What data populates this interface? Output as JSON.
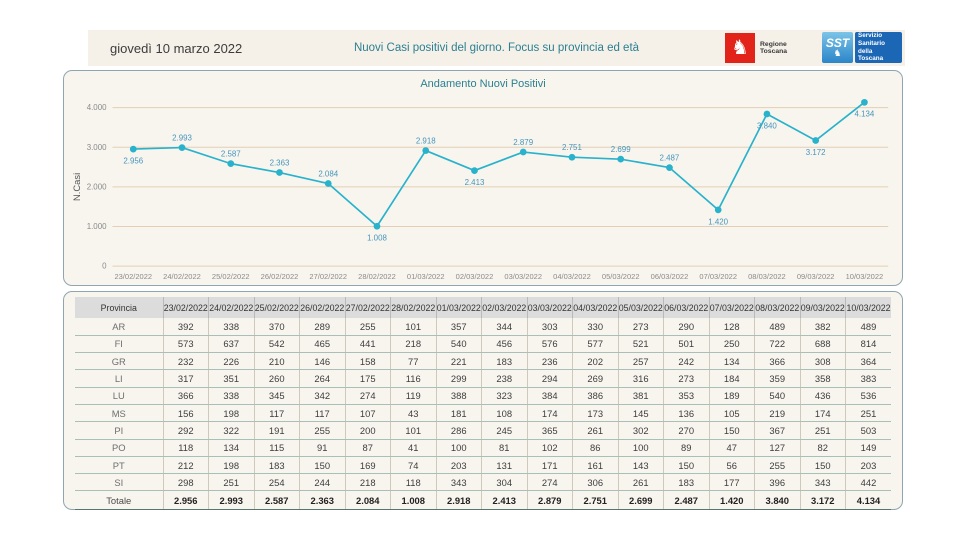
{
  "header": {
    "date": "giovedì 10 marzo 2022",
    "title": "Nuovi Casi positivi del giorno. Focus su provincia ed età",
    "logos": {
      "region_label": "Regione Toscana",
      "sst_acronym": "SST",
      "sst_label": "Servizio Sanitario della Toscana"
    }
  },
  "colors": {
    "line": "#29b2cc",
    "data_label": "#4596bd",
    "gridline": "#e2cfb5",
    "axis_text": "#8a8a8a",
    "accent_title": "#2b7f91",
    "logo_red": "#e2231a",
    "logo_blue": "#1b66b5"
  },
  "chart_data": {
    "type": "line",
    "title": "Andamento Nuovi Positivi",
    "xlabel": "",
    "ylabel": "N.Casi",
    "ylim": [
      0,
      4000
    ],
    "grid": true,
    "legend": false,
    "yticks": [
      "0",
      "1.000",
      "2.000",
      "3.000",
      "4.000"
    ],
    "ytick_values": [
      0,
      1000,
      2000,
      3000,
      4000
    ],
    "x": [
      "23/02/2022",
      "24/02/2022",
      "25/02/2022",
      "26/02/2022",
      "27/02/2022",
      "28/02/2022",
      "01/03/2022",
      "02/03/2022",
      "03/03/2022",
      "04/03/2022",
      "05/03/2022",
      "06/03/2022",
      "07/03/2022",
      "08/03/2022",
      "09/03/2022",
      "10/03/2022"
    ],
    "values": [
      2956,
      2993,
      2587,
      2363,
      2084,
      1008,
      2918,
      2413,
      2879,
      2751,
      2699,
      2487,
      1420,
      3840,
      3172,
      4134
    ],
    "labels": [
      "2.956",
      "2.993",
      "2.587",
      "2.363",
      "2.084",
      "1.008",
      "2.918",
      "2.413",
      "2.879",
      "2.751",
      "2.699",
      "2.487",
      "1.420",
      "3.840",
      "3.172",
      "4.134"
    ],
    "label_position": [
      "below",
      "above",
      "above",
      "above",
      "above",
      "below",
      "above",
      "below",
      "above",
      "above",
      "above",
      "above",
      "below",
      "below",
      "below",
      "below"
    ]
  },
  "table": {
    "header_col": "Provincia",
    "dates": [
      "23/02/2022",
      "24/02/2022",
      "25/02/2022",
      "26/02/2022",
      "27/02/2022",
      "28/02/2022",
      "01/03/2022",
      "02/03/2022",
      "03/03/2022",
      "04/03/2022",
      "05/03/2022",
      "06/03/2022",
      "07/03/2022",
      "08/03/2022",
      "09/03/2022",
      "10/03/2022"
    ],
    "rows": [
      {
        "label": "AR",
        "values": [
          "392",
          "338",
          "370",
          "289",
          "255",
          "101",
          "357",
          "344",
          "303",
          "330",
          "273",
          "290",
          "128",
          "489",
          "382",
          "489"
        ]
      },
      {
        "label": "FI",
        "values": [
          "573",
          "637",
          "542",
          "465",
          "441",
          "218",
          "540",
          "456",
          "576",
          "577",
          "521",
          "501",
          "250",
          "722",
          "688",
          "814"
        ]
      },
      {
        "label": "GR",
        "values": [
          "232",
          "226",
          "210",
          "146",
          "158",
          "77",
          "221",
          "183",
          "236",
          "202",
          "257",
          "242",
          "134",
          "366",
          "308",
          "364"
        ]
      },
      {
        "label": "LI",
        "values": [
          "317",
          "351",
          "260",
          "264",
          "175",
          "116",
          "299",
          "238",
          "294",
          "269",
          "316",
          "273",
          "184",
          "359",
          "358",
          "383"
        ]
      },
      {
        "label": "LU",
        "values": [
          "366",
          "338",
          "345",
          "342",
          "274",
          "119",
          "388",
          "323",
          "384",
          "386",
          "381",
          "353",
          "189",
          "540",
          "436",
          "536"
        ]
      },
      {
        "label": "MS",
        "values": [
          "156",
          "198",
          "117",
          "117",
          "107",
          "43",
          "181",
          "108",
          "174",
          "173",
          "145",
          "136",
          "105",
          "219",
          "174",
          "251"
        ]
      },
      {
        "label": "PI",
        "values": [
          "292",
          "322",
          "191",
          "255",
          "200",
          "101",
          "286",
          "245",
          "365",
          "261",
          "302",
          "270",
          "150",
          "367",
          "251",
          "503"
        ]
      },
      {
        "label": "PO",
        "values": [
          "118",
          "134",
          "115",
          "91",
          "87",
          "41",
          "100",
          "81",
          "102",
          "86",
          "100",
          "89",
          "47",
          "127",
          "82",
          "149"
        ]
      },
      {
        "label": "PT",
        "values": [
          "212",
          "198",
          "183",
          "150",
          "169",
          "74",
          "203",
          "131",
          "171",
          "161",
          "143",
          "150",
          "56",
          "255",
          "150",
          "203"
        ]
      },
      {
        "label": "SI",
        "values": [
          "298",
          "251",
          "254",
          "244",
          "218",
          "118",
          "343",
          "304",
          "274",
          "306",
          "261",
          "183",
          "177",
          "396",
          "343",
          "442"
        ]
      },
      {
        "label": "Totale",
        "bold": true,
        "values": [
          "2.956",
          "2.993",
          "2.587",
          "2.363",
          "2.084",
          "1.008",
          "2.918",
          "2.413",
          "2.879",
          "2.751",
          "2.699",
          "2.487",
          "1.420",
          "3.840",
          "3.172",
          "4.134"
        ]
      }
    ]
  }
}
